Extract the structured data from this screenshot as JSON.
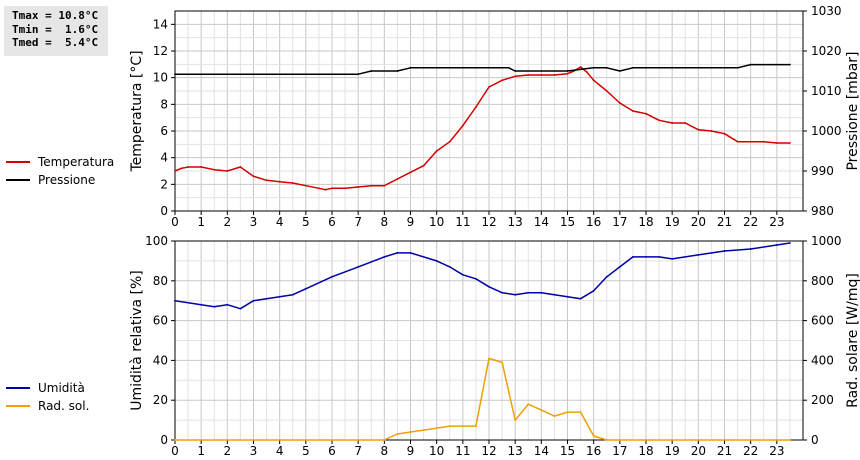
{
  "stats": {
    "lines": [
      "Tmax = 10.8°C",
      "Tmin =  1.6°C",
      "Tmed =  5.4°C"
    ]
  },
  "legends": [
    [
      {
        "label": "Temperatura",
        "color": "#d40000"
      },
      {
        "label": "Pressione",
        "color": "#000000"
      }
    ],
    [
      {
        "label": "Umidità",
        "color": "#0000aa"
      },
      {
        "label": "Rad. sol.",
        "color": "#f0a000"
      }
    ]
  ],
  "chart_data": [
    {
      "type": "line",
      "ylabel": "Temperatura [°C]",
      "y2label": "Pressione [mbar]",
      "ylim": [
        0,
        15
      ],
      "y2lim": [
        980,
        1030
      ],
      "yticks": [
        0,
        2,
        4,
        6,
        8,
        10,
        12,
        14
      ],
      "y2ticks": [
        980,
        990,
        1000,
        1010,
        1020,
        1030
      ],
      "xlim": [
        0,
        24
      ],
      "xticks": [
        0,
        1,
        2,
        3,
        4,
        5,
        6,
        7,
        8,
        9,
        10,
        11,
        12,
        13,
        14,
        15,
        16,
        17,
        18,
        19,
        20,
        21,
        22,
        23
      ],
      "grid": true,
      "series": [
        {
          "name": "Temperatura",
          "axis": "left",
          "color": "#d40000",
          "x": [
            0,
            0.25,
            0.5,
            1,
            1.5,
            2,
            2.5,
            3,
            3.5,
            4,
            4.5,
            5,
            5.5,
            5.75,
            6,
            6.5,
            7,
            7.5,
            8,
            8.5,
            9,
            9.5,
            10,
            10.5,
            11,
            11.5,
            12,
            12.5,
            13,
            13.5,
            14,
            14.5,
            15,
            15.25,
            15.5,
            15.75,
            16,
            16.5,
            17,
            17.5,
            18,
            18.5,
            19,
            19.5,
            20,
            20.5,
            21,
            21.5,
            22,
            22.5,
            23,
            23.5
          ],
          "y": [
            3.0,
            3.2,
            3.3,
            3.3,
            3.1,
            3.0,
            3.3,
            2.6,
            2.3,
            2.2,
            2.1,
            1.9,
            1.7,
            1.6,
            1.7,
            1.7,
            1.8,
            1.9,
            1.9,
            2.4,
            2.9,
            3.4,
            4.5,
            5.2,
            6.4,
            7.8,
            9.3,
            9.8,
            10.1,
            10.2,
            10.2,
            10.2,
            10.3,
            10.5,
            10.8,
            10.4,
            9.8,
            9.0,
            8.1,
            7.5,
            7.3,
            6.8,
            6.6,
            6.6,
            6.1,
            6.0,
            5.8,
            5.2,
            5.2,
            5.2,
            5.1,
            5.1
          ]
        },
        {
          "name": "Pressione",
          "axis": "right",
          "color": "#000000",
          "x": [
            0,
            7,
            7.5,
            8.5,
            9,
            12.75,
            13,
            15,
            16,
            16.5,
            17,
            17.5,
            18,
            21.5,
            22,
            23.5
          ],
          "y": [
            1014.2,
            1014.2,
            1015.0,
            1015.0,
            1015.8,
            1015.8,
            1015.0,
            1015.0,
            1015.8,
            1015.8,
            1015.0,
            1015.8,
            1015.8,
            1015.8,
            1016.6,
            1016.6
          ]
        }
      ]
    },
    {
      "type": "line",
      "ylabel": "Umidità relativa [%]",
      "y2label": "Rad. solare [W/mq]",
      "ylim": [
        0,
        100
      ],
      "y2lim": [
        0,
        1000
      ],
      "yticks": [
        0,
        20,
        40,
        60,
        80,
        100
      ],
      "y2ticks": [
        0,
        200,
        400,
        600,
        800,
        1000
      ],
      "xlim": [
        0,
        24
      ],
      "xticks": [
        0,
        1,
        2,
        3,
        4,
        5,
        6,
        7,
        8,
        9,
        10,
        11,
        12,
        13,
        14,
        15,
        16,
        17,
        18,
        19,
        20,
        21,
        22,
        23
      ],
      "grid": true,
      "series": [
        {
          "name": "Umidità",
          "axis": "left",
          "color": "#0000aa",
          "x": [
            0,
            1,
            1.5,
            2,
            2.5,
            3,
            3.5,
            4,
            4.5,
            5,
            6,
            7,
            8,
            8.5,
            9,
            10,
            10.5,
            11,
            11.5,
            12,
            12.5,
            13,
            13.5,
            14,
            14.5,
            15,
            15.5,
            16,
            16.5,
            17,
            17.5,
            18,
            18.5,
            19,
            20,
            21,
            22,
            23,
            23.5
          ],
          "y": [
            70,
            68,
            67,
            68,
            66,
            70,
            71,
            72,
            73,
            76,
            82,
            87,
            92,
            94,
            94,
            90,
            87,
            83,
            81,
            77,
            74,
            73,
            74,
            74,
            73,
            72,
            71,
            75,
            82,
            87,
            92,
            92,
            92,
            91,
            93,
            95,
            96,
            98,
            99
          ]
        },
        {
          "name": "Rad. sol.",
          "axis": "right",
          "color": "#f0a000",
          "x": [
            0,
            8,
            8.5,
            9,
            9.5,
            10,
            10.5,
            11,
            11.5,
            12,
            12.25,
            12.5,
            13,
            13.5,
            14,
            14.5,
            15,
            15.5,
            16,
            16.5,
            17,
            23.5
          ],
          "y": [
            0,
            0,
            30,
            40,
            50,
            60,
            70,
            70,
            70,
            410,
            400,
            390,
            100,
            180,
            150,
            120,
            140,
            140,
            20,
            0,
            0,
            0
          ]
        }
      ]
    }
  ]
}
